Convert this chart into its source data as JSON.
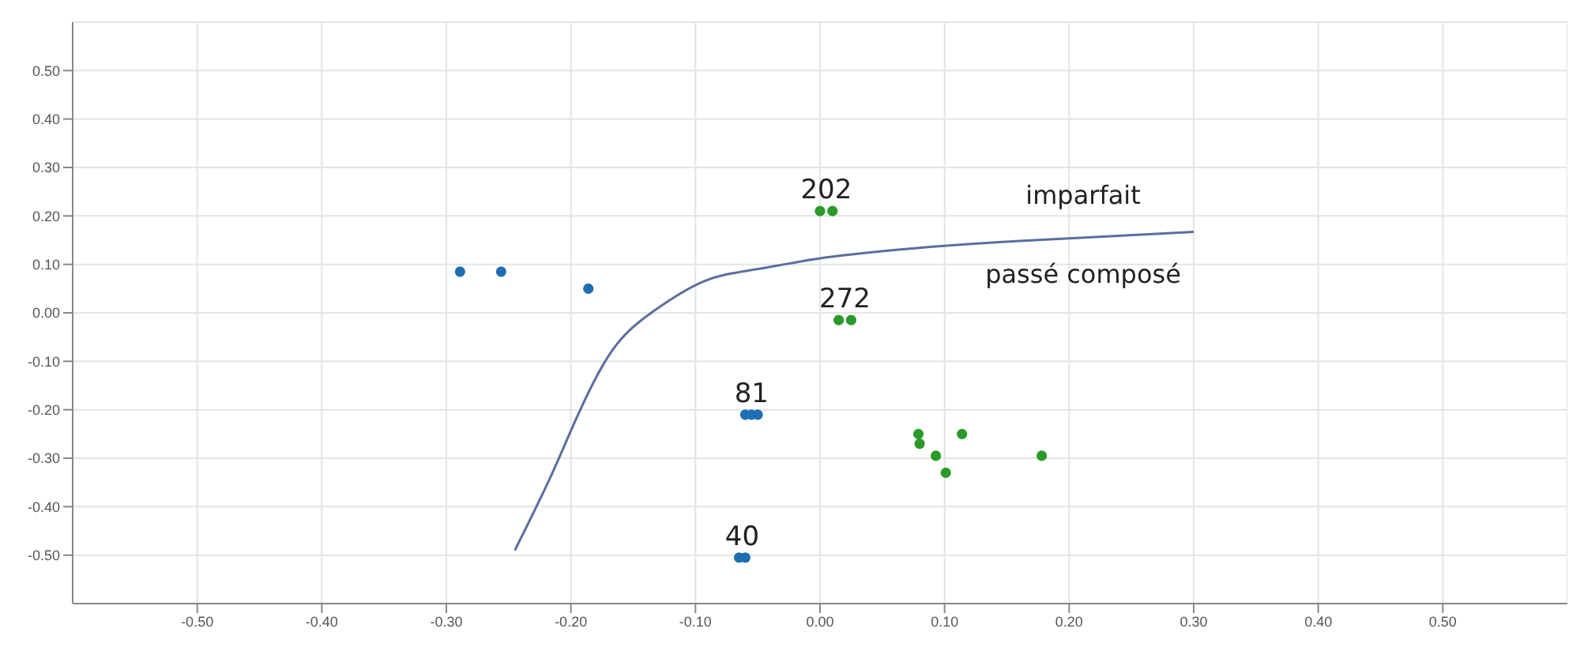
{
  "chart_data": {
    "type": "scatter",
    "xlim": [
      -0.6,
      0.6
    ],
    "ylim": [
      -0.6,
      0.6
    ],
    "xticks": [
      {
        "value": -0.5,
        "label": "-0.50"
      },
      {
        "value": -0.4,
        "label": "-0.40"
      },
      {
        "value": -0.3,
        "label": "-0.30"
      },
      {
        "value": -0.2,
        "label": "-0.20"
      },
      {
        "value": -0.1,
        "label": "-0.10"
      },
      {
        "value": 0,
        "label": "0.00"
      },
      {
        "value": 0.1,
        "label": "0.10"
      },
      {
        "value": 0.2,
        "label": "0.20"
      },
      {
        "value": 0.3,
        "label": "0.30"
      },
      {
        "value": 0.4,
        "label": "0.40"
      },
      {
        "value": 0.5,
        "label": "0.50"
      }
    ],
    "yticks": [
      {
        "value": -0.5,
        "label": "-0.50"
      },
      {
        "value": -0.4,
        "label": "-0.40"
      },
      {
        "value": -0.3,
        "label": "-0.30"
      },
      {
        "value": -0.2,
        "label": "-0.20"
      },
      {
        "value": -0.1,
        "label": "-0.10"
      },
      {
        "value": 0,
        "label": "0.00"
      },
      {
        "value": 0.1,
        "label": "0.10"
      },
      {
        "value": 0.2,
        "label": "0.20"
      },
      {
        "value": 0.3,
        "label": "0.30"
      },
      {
        "value": 0.4,
        "label": "0.40"
      },
      {
        "value": 0.5,
        "label": "0.50"
      }
    ],
    "grid": true,
    "marker": "circle",
    "series": [
      {
        "color": "#1f6db3",
        "x": [
          -0.289,
          -0.256,
          -0.186,
          -0.06,
          -0.055,
          -0.05,
          -0.065,
          -0.06
        ],
        "values": [
          0.085,
          0.085,
          0.05,
          -0.21,
          -0.21,
          -0.21,
          -0.505,
          -0.505
        ]
      },
      {
        "color": "#2a9a2a",
        "x": [
          0.0,
          0.01,
          0.015,
          0.025,
          0.079,
          0.08,
          0.093,
          0.101,
          0.114,
          0.178
        ],
        "values": [
          0.21,
          0.21,
          -0.015,
          -0.015,
          -0.25,
          -0.27,
          -0.295,
          -0.33,
          -0.25,
          -0.295
        ]
      },
      {
        "type": "line",
        "color": "#5a6e9e",
        "marker": "none",
        "x": [
          -0.245,
          -0.2175,
          -0.196,
          -0.1675,
          -0.134,
          -0.0925,
          -0.051,
          0.004,
          0.074,
          0.157,
          0.3
        ],
        "values": [
          -0.49,
          -0.345,
          -0.22,
          -0.08,
          0.003,
          0.066,
          0.09,
          0.114,
          0.133,
          0.148,
          0.167
        ]
      }
    ],
    "annotations": [
      {
        "text": "202",
        "x": 0.005,
        "y": 0.21
      },
      {
        "text": "272",
        "x": 0.02,
        "y": -0.015
      },
      {
        "text": "81",
        "x": -0.055,
        "y": -0.21
      },
      {
        "text": "40",
        "x": -0.0625,
        "y": -0.505
      },
      "imparfait",
      "passé composé"
    ]
  }
}
